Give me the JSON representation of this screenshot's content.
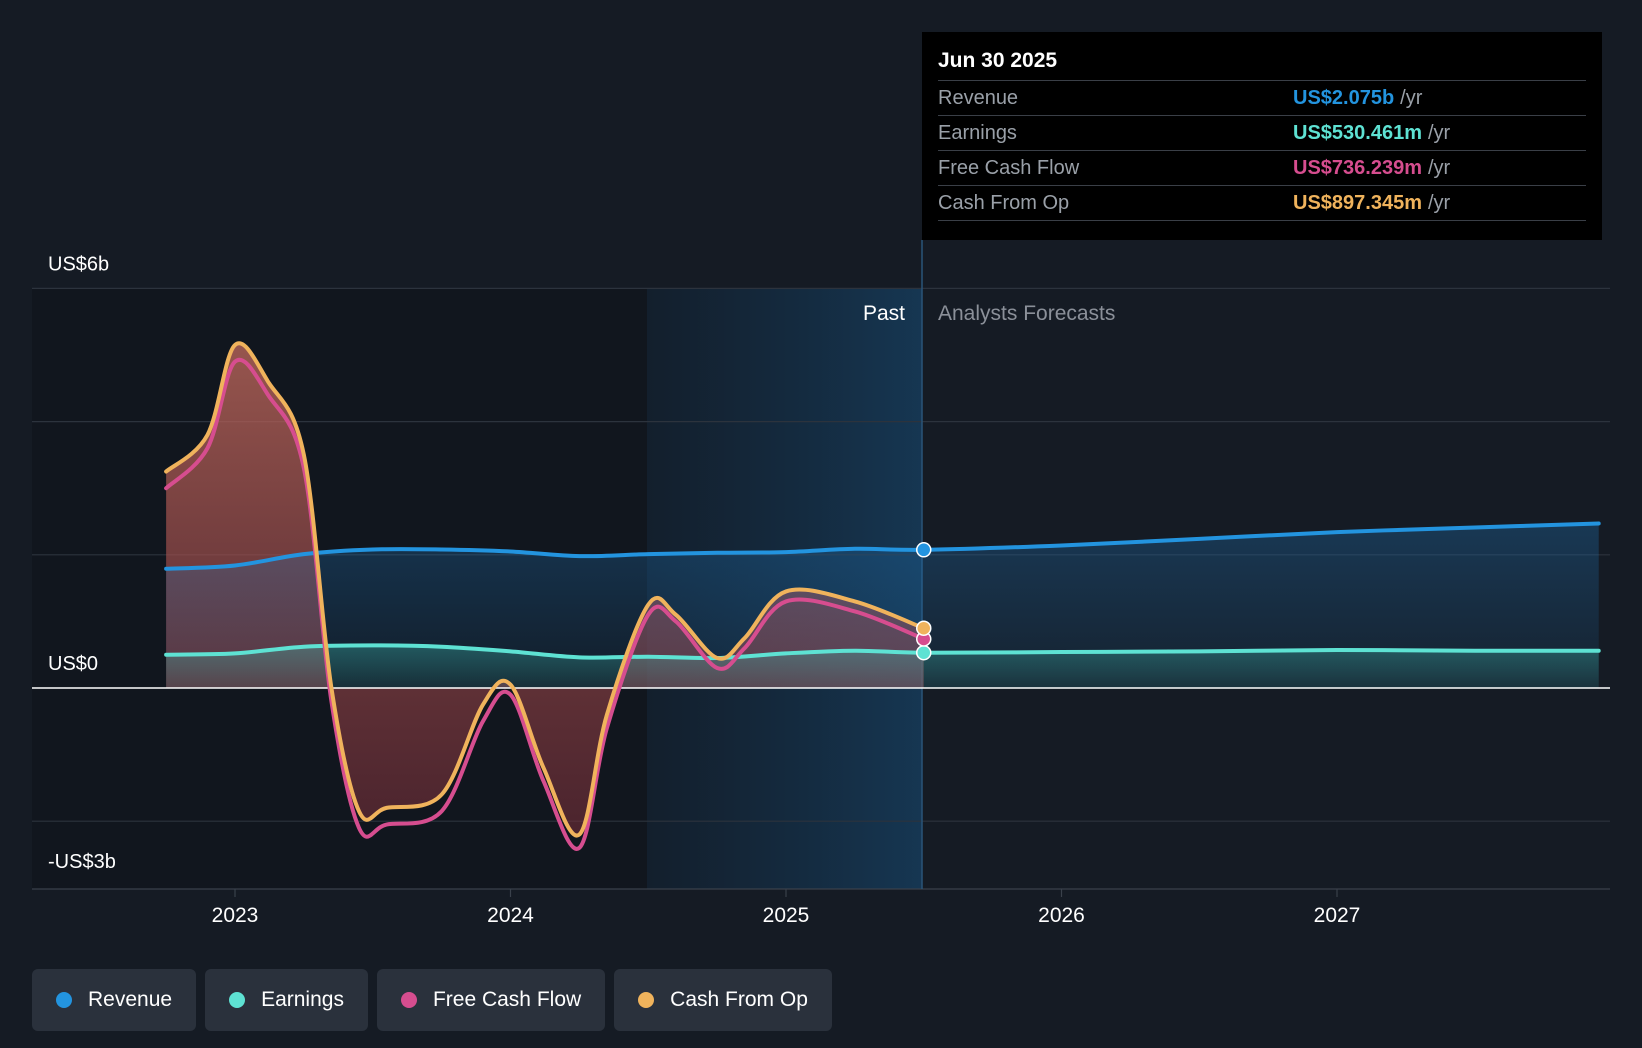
{
  "chart_data": {
    "type": "area",
    "xaxis": {
      "ticks": [
        "2023",
        "2024",
        "2025",
        "2026",
        "2027"
      ]
    },
    "yaxis": {
      "labels": [
        "US$6b",
        "US$0",
        "-US$3b"
      ],
      "ylim": [
        -3.0,
        6.0
      ]
    },
    "regions": {
      "past_label": "Past",
      "forecast_label": "Analysts Forecasts"
    },
    "series": [
      {
        "name": "Revenue",
        "color": "#2394df",
        "x": [
          2022.75,
          2023.0,
          2023.25,
          2023.5,
          2023.75,
          2024.0,
          2024.25,
          2024.5,
          2024.75,
          2025.0,
          2025.25,
          2025.5,
          2026.0,
          2026.5,
          2027.0,
          2027.5,
          2027.95
        ],
        "y": [
          1.79,
          1.84,
          2.01,
          2.08,
          2.08,
          2.05,
          1.98,
          2.01,
          2.03,
          2.04,
          2.09,
          2.075,
          2.14,
          2.24,
          2.34,
          2.41,
          2.47
        ]
      },
      {
        "name": "Earnings",
        "color": "#5ee2d3",
        "x": [
          2022.75,
          2023.0,
          2023.25,
          2023.5,
          2023.75,
          2024.0,
          2024.25,
          2024.5,
          2024.75,
          2025.0,
          2025.25,
          2025.5,
          2026.0,
          2026.5,
          2027.0,
          2027.5,
          2027.95
        ],
        "y": [
          0.5,
          0.52,
          0.62,
          0.64,
          0.62,
          0.55,
          0.46,
          0.47,
          0.45,
          0.52,
          0.56,
          0.53,
          0.54,
          0.55,
          0.57,
          0.56,
          0.56
        ]
      },
      {
        "name": "Free Cash Flow",
        "color": "#d64d8f",
        "x": [
          2022.75,
          2022.9,
          2023.0,
          2023.12,
          2023.25,
          2023.35,
          2023.45,
          2023.55,
          2023.75,
          2023.9,
          2024.0,
          2024.12,
          2024.25,
          2024.35,
          2024.5,
          2024.6,
          2024.75,
          2024.85,
          2025.0,
          2025.25,
          2025.5
        ],
        "y": [
          3.0,
          3.6,
          4.9,
          4.4,
          3.3,
          -0.2,
          -2.1,
          -2.05,
          -1.85,
          -0.5,
          -0.1,
          -1.4,
          -2.4,
          -0.6,
          1.1,
          1.0,
          0.3,
          0.6,
          1.3,
          1.15,
          0.736
        ]
      },
      {
        "name": "Cash From Op",
        "color": "#f0b35c",
        "x": [
          2022.75,
          2022.9,
          2023.0,
          2023.12,
          2023.25,
          2023.35,
          2023.45,
          2023.55,
          2023.75,
          2023.9,
          2024.0,
          2024.12,
          2024.25,
          2024.35,
          2024.5,
          2024.6,
          2024.75,
          2024.85,
          2025.0,
          2025.25,
          2025.5
        ],
        "y": [
          3.25,
          3.8,
          5.15,
          4.6,
          3.5,
          0.0,
          -1.85,
          -1.8,
          -1.6,
          -0.25,
          0.05,
          -1.2,
          -2.2,
          -0.4,
          1.25,
          1.1,
          0.45,
          0.75,
          1.45,
          1.3,
          0.897
        ]
      }
    ]
  },
  "tooltip": {
    "date": "Jun 30 2025",
    "unit": "/yr",
    "rows": [
      {
        "label": "Revenue",
        "value": "US$2.075b",
        "color": "#2394df"
      },
      {
        "label": "Earnings",
        "value": "US$530.461m",
        "color": "#5ee2d3"
      },
      {
        "label": "Free Cash Flow",
        "value": "US$736.239m",
        "color": "#d64d8f"
      },
      {
        "label": "Cash From Op",
        "value": "US$897.345m",
        "color": "#f0b35c"
      }
    ]
  },
  "legend": [
    {
      "label": "Revenue",
      "color": "#2394df"
    },
    {
      "label": "Earnings",
      "color": "#5ee2d3"
    },
    {
      "label": "Free Cash Flow",
      "color": "#d64d8f"
    },
    {
      "label": "Cash From Op",
      "color": "#f0b35c"
    }
  ]
}
